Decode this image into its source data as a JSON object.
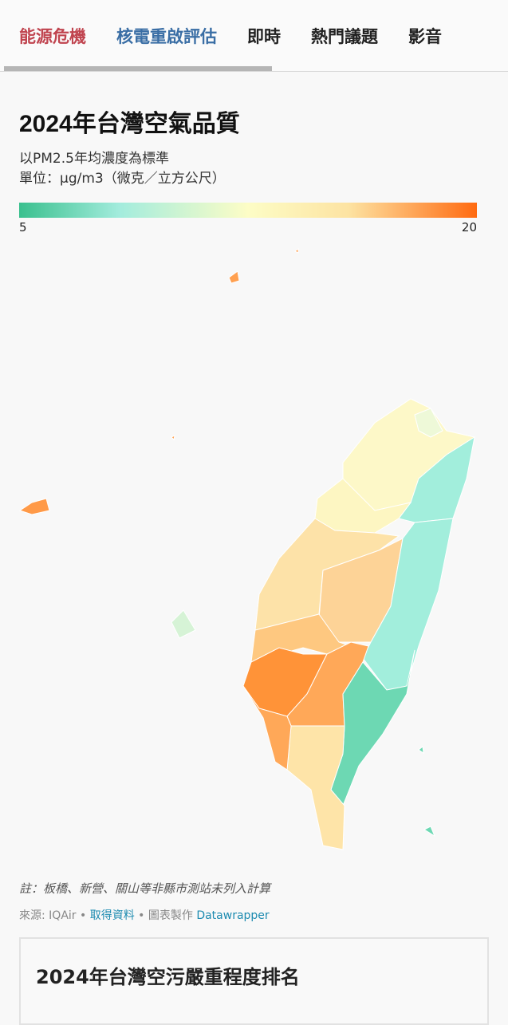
{
  "nav": {
    "items": [
      {
        "label": "能源危機",
        "color": "#c0444f"
      },
      {
        "label": "核電重啟評估",
        "color": "#3a6ea5"
      },
      {
        "label": "即時",
        "color": "#222222"
      },
      {
        "label": "熱門議題",
        "color": "#222222"
      },
      {
        "label": "影音",
        "color": "#222222"
      }
    ]
  },
  "chart_data": {
    "type": "choropleth",
    "title": "2024年台灣空氣品質",
    "subtitle": "以PM2.5年均濃度為標準",
    "unit": "單位：μg/m3（微克／立方公尺）",
    "scale": {
      "min": 5,
      "max": 20,
      "min_label": "5",
      "max_label": "20",
      "colors": [
        "#3ac08e",
        "#a3ecdd",
        "#fdfdc6",
        "#fde3a2",
        "#ff6a10"
      ]
    },
    "legend": "top",
    "regions": [
      {
        "fill": "#fdf8c8"
      },
      {
        "fill": "#eef9d8"
      },
      {
        "fill": "#a2eedc"
      },
      {
        "fill": "#fdf6c2"
      },
      {
        "fill": "#fde2a8"
      },
      {
        "fill": "#fdd397"
      },
      {
        "fill": "#a2eedc"
      },
      {
        "fill": "#fec880"
      },
      {
        "fill": "#ff9338"
      },
      {
        "fill": "#ffa858"
      },
      {
        "fill": "#6dd8b3"
      },
      {
        "fill": "#fee4a8"
      },
      {
        "fill": "#ff9a48"
      },
      {
        "fill": "#d6f3d6"
      },
      {
        "fill": "#ffa050"
      }
    ]
  },
  "footer": {
    "note": "註：板橋、新營、關山等非縣市測站未列入計算",
    "source_prefix": "來源: IQAir • ",
    "get_data": "取得資料",
    "made_with": " • 圖表製作 ",
    "datawrapper": "Datawrapper"
  },
  "next_card": {
    "title": "2024年台灣空污嚴重程度排名"
  }
}
